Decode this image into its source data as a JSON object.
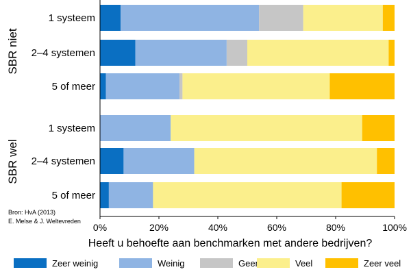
{
  "chart_data": {
    "type": "bar",
    "orientation": "horizontal",
    "stacked": true,
    "groups": [
      {
        "label": "SBR niet",
        "rows": [
          {
            "label": "1 systeem",
            "values": [
              7,
              47,
              15,
              27,
              4
            ]
          },
          {
            "label": "2–4 systemen",
            "values": [
              12,
              31,
              7,
              48,
              2
            ]
          },
          {
            "label": "5 of meer",
            "values": [
              2,
              25,
              1,
              50,
              22
            ]
          }
        ]
      },
      {
        "label": "SBR wel",
        "rows": [
          {
            "label": "1 systeem",
            "values": [
              0,
              24,
              0,
              65,
              11
            ]
          },
          {
            "label": "2–4 systemen",
            "values": [
              8,
              24,
              0,
              62,
              6
            ]
          },
          {
            "label": "5 of meer",
            "values": [
              3,
              15,
              0,
              64,
              18
            ]
          }
        ]
      }
    ],
    "series": [
      {
        "name": "Zeer weinig",
        "color": "#0a6fc2"
      },
      {
        "name": "Weinig",
        "color": "#8fb4e3"
      },
      {
        "name": "Geen",
        "color": "#c6c6c6"
      },
      {
        "name": "Veel",
        "color": "#fbef8c"
      },
      {
        "name": "Zeer veel",
        "color": "#ffc000"
      }
    ],
    "xlabel": "Heeft u behoefte aan benchmarken met andere bedrijven?",
    "xticks": [
      "0%",
      "20%",
      "40%",
      "60%",
      "80%",
      "100%"
    ],
    "xlim": [
      0,
      100
    ],
    "grid": false,
    "legend_position": "bottom",
    "source_lines": [
      "Bron: HvA (2013)",
      "E. Melse & J. Weltevreden"
    ]
  }
}
